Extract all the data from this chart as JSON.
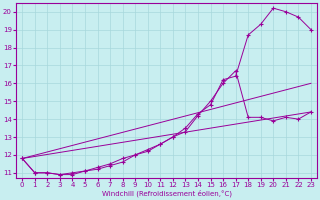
{
  "xlabel": "Windchill (Refroidissement éolien,°C)",
  "background_color": "#c8eef0",
  "grid_color": "#a8d8dc",
  "line_color": "#990099",
  "xlim": [
    -0.5,
    23.5
  ],
  "ylim": [
    10.7,
    20.5
  ],
  "yticks": [
    11,
    12,
    13,
    14,
    15,
    16,
    17,
    18,
    19,
    20
  ],
  "xticks": [
    0,
    1,
    2,
    3,
    4,
    5,
    6,
    7,
    8,
    9,
    10,
    11,
    12,
    13,
    14,
    15,
    16,
    17,
    18,
    19,
    20,
    21,
    22,
    23
  ],
  "curve1_x": [
    0,
    1,
    2,
    3,
    4,
    5,
    6,
    7,
    8,
    9,
    10,
    11,
    12,
    13,
    14,
    15,
    16,
    17,
    18,
    19,
    20,
    21,
    22,
    23
  ],
  "curve1_y": [
    11.8,
    11.0,
    11.0,
    10.9,
    10.9,
    11.1,
    11.2,
    11.4,
    11.6,
    12.0,
    12.2,
    12.6,
    13.0,
    13.5,
    14.3,
    14.8,
    16.2,
    16.4,
    18.7,
    19.3,
    20.2,
    20.0,
    19.7,
    19.0
  ],
  "curve2_x": [
    0,
    1,
    2,
    3,
    4,
    5,
    6,
    7,
    8,
    9,
    10,
    11,
    12,
    13,
    14,
    15,
    16,
    17,
    18,
    19,
    20,
    21,
    22,
    23
  ],
  "curve2_y": [
    11.8,
    11.0,
    11.0,
    10.9,
    11.0,
    11.1,
    11.3,
    11.5,
    11.8,
    12.0,
    12.3,
    12.6,
    13.0,
    13.3,
    14.2,
    15.0,
    16.0,
    16.7,
    14.1,
    14.1,
    13.9,
    14.1,
    14.0,
    14.4
  ],
  "line3_x": [
    0,
    23
  ],
  "line3_y": [
    11.8,
    16.0
  ],
  "line4_x": [
    0,
    23
  ],
  "line4_y": [
    11.8,
    14.4
  ]
}
